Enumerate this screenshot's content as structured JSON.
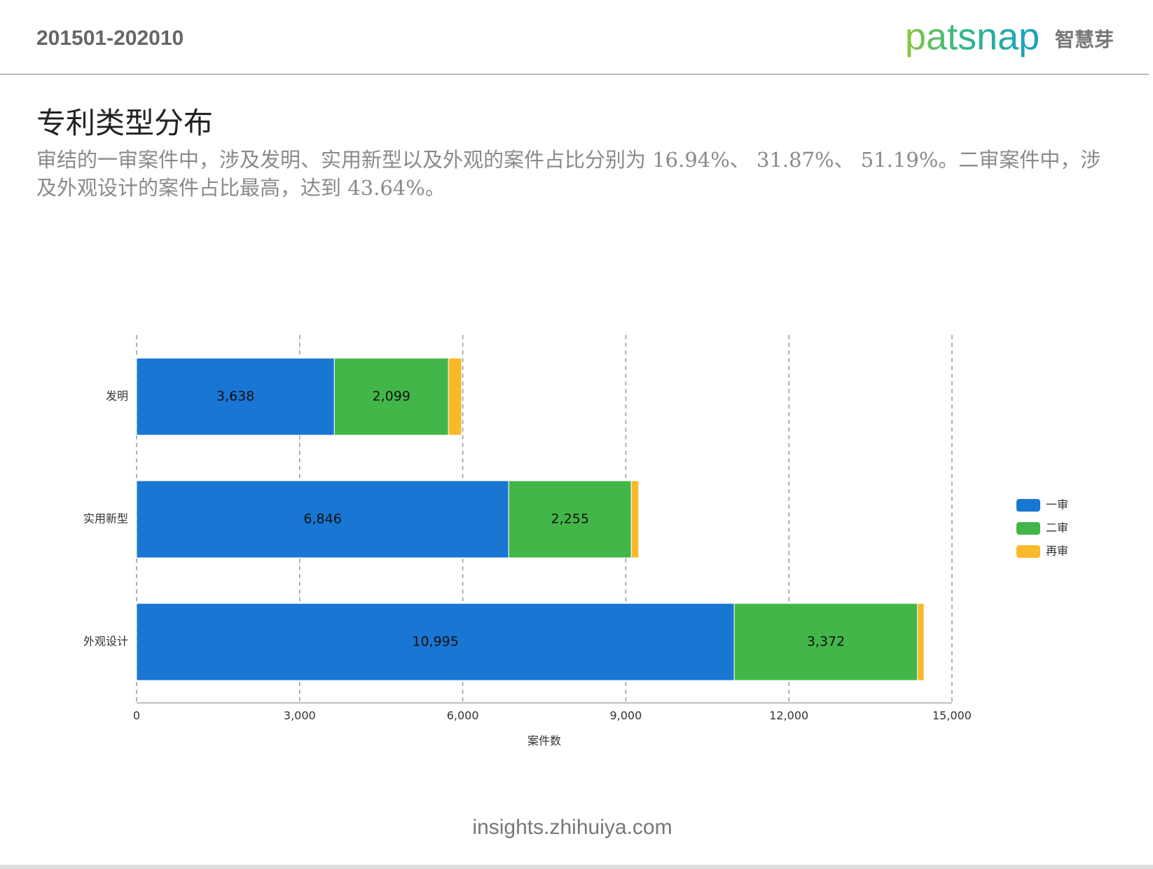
{
  "header": {
    "period": "201501-202010",
    "logo": "patsnap",
    "logo_cn": "智慧芽"
  },
  "title": "专利类型分布",
  "description": "审结的一审案件中，涉及发明、实用新型以及外观的案件占比分别为 16.94%、 31.87%、 51.19%。二审案件中，涉及外观设计的案件占比最高，达到 43.64%。",
  "footer": "insights.zhihuiya.com",
  "chart_data": {
    "type": "hbar-stacked",
    "categories": [
      "发明",
      "实用新型",
      "外观设计"
    ],
    "series": [
      {
        "name": "一审",
        "color": "#1976d2",
        "values": [
          3638,
          6846,
          10995
        ],
        "value_labels": [
          "3,638",
          "6,846",
          "10,995"
        ]
      },
      {
        "name": "二审",
        "color": "#43b649",
        "values": [
          2099,
          2255,
          3372
        ],
        "value_labels": [
          "2,099",
          "2,255",
          "3,372"
        ]
      },
      {
        "name": "再审",
        "color": "#f9b92a",
        "values": [
          242,
          135,
          120
        ]
      }
    ],
    "xlabel": "案件数",
    "xlim": [
      0,
      15000
    ],
    "xticks": [
      0,
      {
        "value": 3000,
        "label": "3,000"
      },
      {
        "value": 6000,
        "label": "6,000"
      },
      {
        "value": 9000,
        "label": "9,000"
      },
      {
        "value": 12000,
        "label": "12,000"
      },
      {
        "value": 15000,
        "label": "15,000"
      }
    ],
    "grid": true,
    "legend": "right"
  }
}
